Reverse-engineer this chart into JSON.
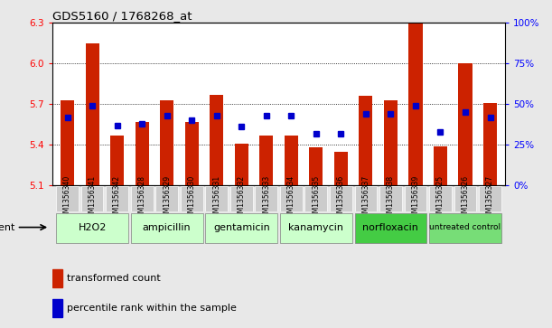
{
  "title": "GDS5160 / 1768268_at",
  "samples": [
    "GSM1356340",
    "GSM1356341",
    "GSM1356342",
    "GSM1356328",
    "GSM1356329",
    "GSM1356330",
    "GSM1356331",
    "GSM1356332",
    "GSM1356333",
    "GSM1356334",
    "GSM1356335",
    "GSM1356336",
    "GSM1356337",
    "GSM1356338",
    "GSM1356339",
    "GSM1356325",
    "GSM1356326",
    "GSM1356327"
  ],
  "red_values": [
    5.73,
    6.15,
    5.47,
    5.57,
    5.73,
    5.57,
    5.77,
    5.41,
    5.47,
    5.47,
    5.38,
    5.35,
    5.76,
    5.73,
    6.3,
    5.39,
    6.0,
    5.71
  ],
  "blue_values": [
    0.42,
    0.49,
    0.37,
    0.38,
    0.43,
    0.4,
    0.43,
    0.36,
    0.43,
    0.43,
    0.32,
    0.32,
    0.44,
    0.44,
    0.49,
    0.33,
    0.45,
    0.42
  ],
  "ylim_left": [
    5.1,
    6.3
  ],
  "ylim_right": [
    0,
    100
  ],
  "yticks_left": [
    5.1,
    5.4,
    5.7,
    6.0,
    6.3
  ],
  "yticks_right": [
    0,
    25,
    50,
    75,
    100
  ],
  "ytick_labels_right": [
    "0%",
    "25%",
    "50%",
    "75%",
    "100%"
  ],
  "groups": [
    {
      "label": "H2O2",
      "start": 0,
      "end": 2,
      "color": "#ccffcc"
    },
    {
      "label": "ampicillin",
      "start": 3,
      "end": 5,
      "color": "#ccffcc"
    },
    {
      "label": "gentamicin",
      "start": 6,
      "end": 8,
      "color": "#ccffcc"
    },
    {
      "label": "kanamycin",
      "start": 9,
      "end": 11,
      "color": "#ccffcc"
    },
    {
      "label": "norfloxacin",
      "start": 12,
      "end": 14,
      "color": "#44cc44"
    },
    {
      "label": "untreated control",
      "start": 15,
      "end": 17,
      "color": "#77dd77"
    }
  ],
  "bar_color": "#cc2200",
  "dot_color": "#0000cc",
  "bar_width": 0.55,
  "base_value": 5.1,
  "bg_color": "#e8e8e8",
  "plot_bg": "#ffffff",
  "tick_bg": "#cccccc",
  "agent_label": "agent",
  "legend_red": "transformed count",
  "legend_blue": "percentile rank within the sample"
}
